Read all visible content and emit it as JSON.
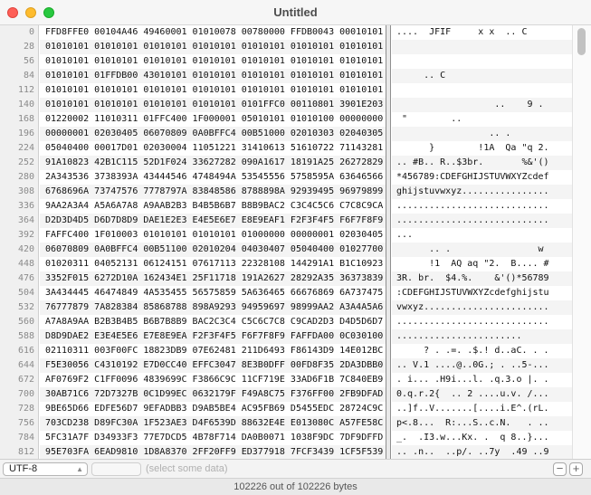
{
  "window": {
    "title": "Untitled",
    "traffic_lights": {
      "close": "#fe5f57",
      "minimize": "#febc2e",
      "zoom": "#28c840"
    }
  },
  "rows": [
    {
      "offset": "0",
      "hex": "FFD8FFE0 00104A46 49460001 01010078 00780000 FFDB0043 00010101",
      "ascii": "....  JFIF     x x  .. C"
    },
    {
      "offset": "28",
      "hex": "01010101 01010101 01010101 01010101 01010101 01010101 01010101",
      "ascii": ""
    },
    {
      "offset": "56",
      "hex": "01010101 01010101 01010101 01010101 01010101 01010101 01010101",
      "ascii": ""
    },
    {
      "offset": "84",
      "hex": "01010101 01FFDB00 43010101 01010101 01010101 01010101 01010101",
      "ascii": "     .. C"
    },
    {
      "offset": "112",
      "hex": "01010101 01010101 01010101 01010101 01010101 01010101 01010101",
      "ascii": ""
    },
    {
      "offset": "140",
      "hex": "01010101 01010101 01010101 01010101 0101FFC0 00110801 3901E203",
      "ascii": "                  ..    9 . "
    },
    {
      "offset": "168",
      "hex": "01220002 11010311 01FFC400 1F000001 05010101 01010100 00000000",
      "ascii": " \"        .."
    },
    {
      "offset": "196",
      "hex": "00000001 02030405 06070809 0A0BFFC4 00B51000 02010303 02040305",
      "ascii": "                 .. ."
    },
    {
      "offset": "224",
      "hex": "05040400 00017D01 02030004 11051221 31410613 51610722 71143281",
      "ascii": "      }        !1A  Qa \"q 2."
    },
    {
      "offset": "252",
      "hex": "91A10823 42B1C115 52D1F024 33627282 090A1617 18191A25 26272829",
      "ascii": ".. #B.. R..$3br.       %&'()"
    },
    {
      "offset": "280",
      "hex": "2A343536 3738393A 43444546 4748494A 53545556 5758595A 63646566",
      "ascii": "*456789:CDEFGHIJSTUVWXYZcdef"
    },
    {
      "offset": "308",
      "hex": "6768696A 73747576 7778797A 83848586 8788898A 92939495 96979899",
      "ascii": "ghijstuvwxyz................"
    },
    {
      "offset": "336",
      "hex": "9AA2A3A4 A5A6A7A8 A9AAB2B3 B4B5B6B7 B8B9BAC2 C3C4C5C6 C7C8C9CA",
      "ascii": "............................"
    },
    {
      "offset": "364",
      "hex": "D2D3D4D5 D6D7D8D9 DAE1E2E3 E4E5E6E7 E8E9EAF1 F2F3F4F5 F6F7F8F9",
      "ascii": "............................"
    },
    {
      "offset": "392",
      "hex": "FAFFC400 1F010003 01010101 01010101 01000000 00000001 02030405",
      "ascii": "..."
    },
    {
      "offset": "420",
      "hex": "06070809 0A0BFFC4 00B51100 02010204 04030407 05040400 01027700",
      "ascii": "      .. .                w "
    },
    {
      "offset": "448",
      "hex": "01020311 04052131 06124151 07617113 22328108 144291A1 B1C10923",
      "ascii": "      !1  AQ aq \"2.  B.... #"
    },
    {
      "offset": "476",
      "hex": "3352F015 6272D10A 162434E1 25F11718 191A2627 28292A35 36373839",
      "ascii": "3R. br.  $4.%.    &'()*56789"
    },
    {
      "offset": "504",
      "hex": "3A434445 46474849 4A535455 56575859 5A636465 66676869 6A737475",
      "ascii": ":CDEFGHIJSTUVWXYZcdefghijstu"
    },
    {
      "offset": "532",
      "hex": "76777879 7A828384 85868788 898A9293 94959697 98999AA2 A3A4A5A6",
      "ascii": "vwxyz......................."
    },
    {
      "offset": "560",
      "hex": "A7A8A9AA B2B3B4B5 B6B7B8B9 BAC2C3C4 C5C6C7C8 C9CAD2D3 D4D5D6D7",
      "ascii": "............................"
    },
    {
      "offset": "588",
      "hex": "D8D9DAE2 E3E4E5E6 E7E8E9EA F2F3F4F5 F6F7F8F9 FAFFDA00 0C030100",
      "ascii": "......................."
    },
    {
      "offset": "616",
      "hex": "02110311 003F00FC 18823DB9 07E62481 211D6493 F86143D9 14E012BC",
      "ascii": "     ? . .=. .$.! d..aC. . ."
    },
    {
      "offset": "644",
      "hex": "F5E30056 C4310192 E7D0CC40 EFFC3047 8E3B0DFF 00FD8F35 2DA3DBB0",
      "ascii": ".. V.1 ....@..0G.; . ..5-..."
    },
    {
      "offset": "672",
      "hex": "AF0769F2 C1FF0096 4839699C F3866C9C 11CF719E 33AD6F1B 7C840EB9",
      "ascii": ". i... .H9i...l. .q.3.o |. ."
    },
    {
      "offset": "700",
      "hex": "30AB71C6 72D7327B 0C1D99EC 0632179F F49A8C75 F376FF00 2FB9DFAD",
      "ascii": "0.q.r.2{  .. 2 ....u.v. /..."
    },
    {
      "offset": "728",
      "hex": "9BE65D66 EDFE56D7 9EFADBB3 D9AB5BE4 AC95FB69 D5455EDC 28724C9C",
      "ascii": "..]f..V.......[....i.E^.(rL."
    },
    {
      "offset": "756",
      "hex": "703CD238 D89FC30A 1F523AE3 D4F6539D 88632E4E E013080C A57FE58C",
      "ascii": "p<.8...  R:...S..c.N.   . .."
    },
    {
      "offset": "784",
      "hex": "5FC31A7F D34933F3 77E7DCD5 4B78F714 DA0B0071 1038F9DC 7DF9DFFD",
      "ascii": "_.  .I3.w...Kx. .  q 8..}..."
    },
    {
      "offset": "812",
      "hex": "95E703FA 6EAD9810 1D8A8370 2FF20FF9 ED377918 7FCF3439 1CF5F539",
      "ascii": ".. .n..  ..p/. ..7y  .49 ..9"
    },
    {
      "offset": "840",
      "hex": "AF568C36 EFDF7BAD 36F5BBDB BE9F146D E3D79F4D DAFBAFA2 F93D1EFA",
      "ascii": ".V.6..{.6..... m...M.....= ."
    },
    {
      "offset": "868",
      "hex": "2B35B465 7B90A642 8036314F 7C5BC1F9 67CC7DDC F7391D0B 1C6CDBA6",
      "ascii": "+5.e{..B.610|[..q.}..9   l.."
    }
  ],
  "toolbar": {
    "encoding": "UTF-8",
    "inspector_value": "",
    "inspector_hint": "(select some data)",
    "remove_label": "−",
    "add_label": "+"
  },
  "status": "102226 out of 102226 bytes"
}
